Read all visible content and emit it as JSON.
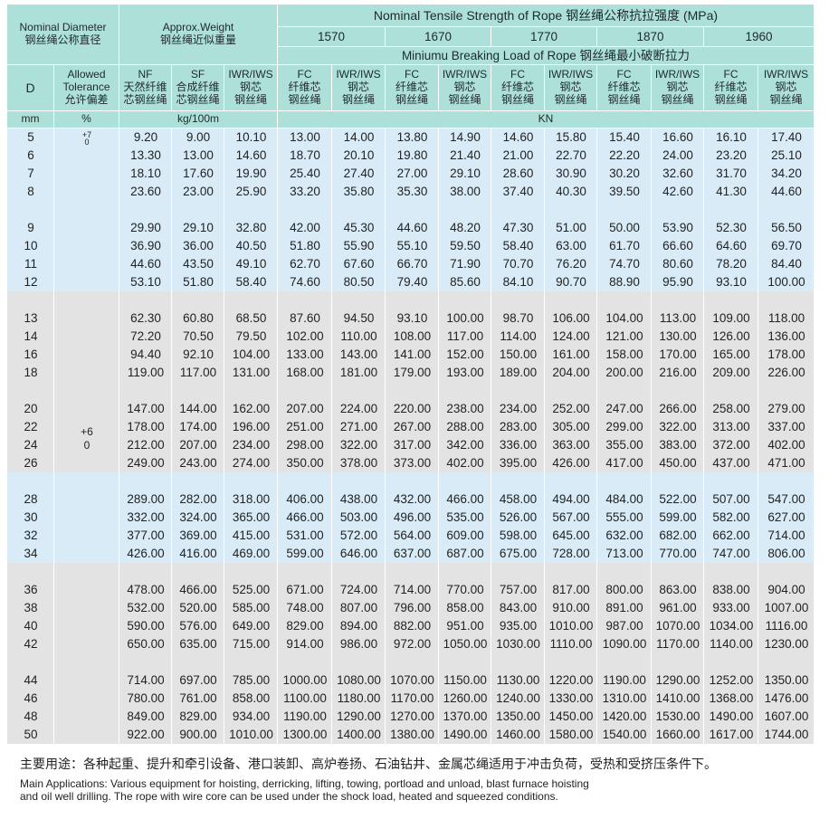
{
  "header": {
    "nominal_diameter": [
      "Nominal Diameter",
      "钢丝绳公称直径"
    ],
    "approx_weight": [
      "Approx.Weight",
      "钢丝绳近似重量"
    ],
    "tensile_strength": "Nominal Tensile Strength of Rope 钢丝绳公称抗拉强度 (MPa)",
    "grades": [
      "1570",
      "1670",
      "1770",
      "1870",
      "1960"
    ],
    "breaking_load": "Miniumu Breaking Load of Rope 钢丝绳最小破断拉力",
    "columns": [
      [
        "D"
      ],
      [
        "Allowed",
        "Tolerance",
        "允许偏差"
      ],
      [
        "NF",
        "天然纤维",
        "芯钢丝绳"
      ],
      [
        "SF",
        "合成纤维",
        "芯钢丝绳"
      ],
      [
        "IWR/IWS",
        "钢芯",
        "钢丝绳"
      ],
      [
        "FC",
        "纤维芯",
        "钢丝绳"
      ],
      [
        "IWR/IWS",
        "钢芯",
        "钢丝绳"
      ],
      [
        "FC",
        "纤维芯",
        "钢丝绳"
      ],
      [
        "IWR/IWS",
        "钢芯",
        "钢丝绳"
      ],
      [
        "FC",
        "纤维芯",
        "钢丝绳"
      ],
      [
        "IWR/IWS",
        "钢芯",
        "钢丝绳"
      ],
      [
        "FC",
        "纤维芯",
        "钢丝绳"
      ],
      [
        "IWR/IWS",
        "钢芯",
        "钢丝绳"
      ],
      [
        "FC",
        "纤维芯",
        "钢丝绳"
      ],
      [
        "IWR/IWS",
        "钢芯",
        "钢丝绳"
      ]
    ],
    "units": [
      "mm",
      "%",
      "kg/100m",
      "KN"
    ]
  },
  "groups": [
    {
      "tolerance": [
        "+7",
        "0"
      ],
      "blocks": [
        [
          [
            "5",
            "9.20",
            "9.00",
            "10.10",
            "13.00",
            "14.00",
            "13.80",
            "14.90",
            "14.60",
            "15.80",
            "15.40",
            "16.60",
            "16.10",
            "17.40"
          ],
          [
            "6",
            "13.30",
            "13.00",
            "14.60",
            "18.70",
            "20.10",
            "19.80",
            "21.40",
            "21.00",
            "22.70",
            "22.20",
            "24.00",
            "23.20",
            "25.10"
          ],
          [
            "7",
            "18.10",
            "17.60",
            "19.90",
            "25.40",
            "27.40",
            "27.00",
            "29.10",
            "28.60",
            "30.90",
            "30.20",
            "32.60",
            "31.70",
            "34.20"
          ],
          [
            "8",
            "23.60",
            "23.00",
            "25.90",
            "33.20",
            "35.80",
            "35.30",
            "38.00",
            "37.40",
            "40.30",
            "39.50",
            "42.60",
            "41.30",
            "44.60"
          ]
        ],
        [
          [
            "9",
            "29.90",
            "29.10",
            "32.80",
            "42.00",
            "45.30",
            "44.60",
            "48.20",
            "47.30",
            "51.00",
            "50.00",
            "53.90",
            "52.30",
            "56.50"
          ],
          [
            "10",
            "36.90",
            "36.00",
            "40.50",
            "51.80",
            "55.90",
            "55.10",
            "59.50",
            "58.40",
            "63.00",
            "61.70",
            "66.60",
            "64.60",
            "69.70"
          ],
          [
            "11",
            "44.60",
            "43.50",
            "49.10",
            "62.70",
            "67.60",
            "66.70",
            "71.90",
            "70.70",
            "76.20",
            "74.70",
            "80.60",
            "78.20",
            "84.40"
          ],
          [
            "12",
            "53.10",
            "51.80",
            "58.40",
            "74.60",
            "80.50",
            "79.40",
            "85.60",
            "84.10",
            "90.70",
            "88.90",
            "95.90",
            "93.10",
            "100.00"
          ]
        ]
      ]
    },
    {
      "tolerance": [
        "+6",
        "0"
      ],
      "blocks": [
        [
          [
            "13",
            "62.30",
            "60.80",
            "68.50",
            "87.60",
            "94.50",
            "93.10",
            "100.00",
            "98.70",
            "106.00",
            "104.00",
            "113.00",
            "109.00",
            "118.00"
          ],
          [
            "14",
            "72.20",
            "70.50",
            "79.50",
            "102.00",
            "110.00",
            "108.00",
            "117.00",
            "114.00",
            "124.00",
            "121.00",
            "130.00",
            "126.00",
            "136.00"
          ],
          [
            "16",
            "94.40",
            "92.10",
            "104.00",
            "133.00",
            "143.00",
            "141.00",
            "152.00",
            "150.00",
            "161.00",
            "158.00",
            "170.00",
            "165.00",
            "178.00"
          ],
          [
            "18",
            "119.00",
            "117.00",
            "131.00",
            "168.00",
            "181.00",
            "179.00",
            "193.00",
            "189.00",
            "204.00",
            "200.00",
            "216.00",
            "209.00",
            "226.00"
          ]
        ],
        [
          [
            "20",
            "147.00",
            "144.00",
            "162.00",
            "207.00",
            "224.00",
            "220.00",
            "238.00",
            "234.00",
            "252.00",
            "247.00",
            "266.00",
            "258.00",
            "279.00"
          ],
          [
            "22",
            "178.00",
            "174.00",
            "196.00",
            "251.00",
            "271.00",
            "267.00",
            "288.00",
            "283.00",
            "305.00",
            "299.00",
            "322.00",
            "313.00",
            "337.00"
          ],
          [
            "24",
            "212.00",
            "207.00",
            "234.00",
            "298.00",
            "322.00",
            "317.00",
            "342.00",
            "336.00",
            "363.00",
            "355.00",
            "383.00",
            "372.00",
            "402.00"
          ],
          [
            "26",
            "249.00",
            "243.00",
            "274.00",
            "350.00",
            "378.00",
            "373.00",
            "402.00",
            "395.00",
            "426.00",
            "417.00",
            "450.00",
            "437.00",
            "471.00"
          ]
        ]
      ]
    },
    {
      "blocks": [
        [
          [
            "28",
            "289.00",
            "282.00",
            "318.00",
            "406.00",
            "438.00",
            "432.00",
            "466.00",
            "458.00",
            "494.00",
            "484.00",
            "522.00",
            "507.00",
            "547.00"
          ],
          [
            "30",
            "332.00",
            "324.00",
            "365.00",
            "466.00",
            "503.00",
            "496.00",
            "535.00",
            "526.00",
            "567.00",
            "555.00",
            "599.00",
            "582.00",
            "627.00"
          ],
          [
            "32",
            "377.00",
            "369.00",
            "415.00",
            "531.00",
            "572.00",
            "564.00",
            "609.00",
            "598.00",
            "645.00",
            "632.00",
            "682.00",
            "662.00",
            "714.00"
          ],
          [
            "34",
            "426.00",
            "416.00",
            "469.00",
            "599.00",
            "646.00",
            "637.00",
            "687.00",
            "675.00",
            "728.00",
            "713.00",
            "770.00",
            "747.00",
            "806.00"
          ]
        ]
      ]
    },
    {
      "blocks": [
        [
          [
            "36",
            "478.00",
            "466.00",
            "525.00",
            "671.00",
            "724.00",
            "714.00",
            "770.00",
            "757.00",
            "817.00",
            "800.00",
            "863.00",
            "838.00",
            "904.00"
          ],
          [
            "38",
            "532.00",
            "520.00",
            "585.00",
            "748.00",
            "807.00",
            "796.00",
            "858.00",
            "843.00",
            "910.00",
            "891.00",
            "961.00",
            "933.00",
            "1007.00"
          ],
          [
            "40",
            "590.00",
            "576.00",
            "649.00",
            "829.00",
            "894.00",
            "882.00",
            "951.00",
            "935.00",
            "1010.00",
            "987.00",
            "1070.00",
            "1034.00",
            "1116.00"
          ],
          [
            "42",
            "650.00",
            "635.00",
            "715.00",
            "914.00",
            "986.00",
            "972.00",
            "1050.00",
            "1030.00",
            "1110.00",
            "1090.00",
            "1170.00",
            "1140.00",
            "1230.00"
          ]
        ],
        [
          [
            "44",
            "714.00",
            "697.00",
            "785.00",
            "1000.00",
            "1080.00",
            "1070.00",
            "1150.00",
            "1130.00",
            "1220.00",
            "1190.00",
            "1290.00",
            "1252.00",
            "1350.00"
          ],
          [
            "46",
            "780.00",
            "761.00",
            "858.00",
            "1100.00",
            "1180.00",
            "1170.00",
            "1260.00",
            "1240.00",
            "1330.00",
            "1310.00",
            "1410.00",
            "1368.00",
            "1476.00"
          ],
          [
            "48",
            "849.00",
            "829.00",
            "934.00",
            "1190.00",
            "1290.00",
            "1270.00",
            "1370.00",
            "1350.00",
            "1450.00",
            "1420.00",
            "1530.00",
            "1490.00",
            "1607.00"
          ],
          [
            "50",
            "922.00",
            "900.00",
            "1010.00",
            "1300.00",
            "1400.00",
            "1380.00",
            "1490.00",
            "1460.00",
            "1580.00",
            "1540.00",
            "1660.00",
            "1617.00",
            "1744.00"
          ]
        ]
      ]
    }
  ],
  "footer": {
    "zh": "主要用途：各种起重、提升和牵引设备、港口装卸、高炉卷扬、石油钻井、金属芯绳适用于冲击负荷，受热和受挤压条件下。",
    "en": [
      "Main Applications: Various equipment for hoisting, derricking, lifting, towing, portload and unload, blast furnace hoisting",
      "and oil well drilling. The rope with wire core can be used under the shock load, heated and squeezed conditions."
    ]
  }
}
